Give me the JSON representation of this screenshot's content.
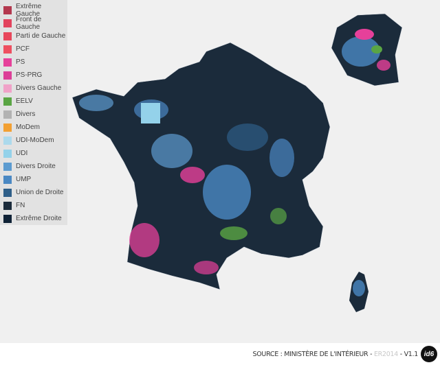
{
  "legend": [
    {
      "label": "Extrême Gauche",
      "color": "#b3384e"
    },
    {
      "label": "Front de Gauche",
      "color": "#e2435d"
    },
    {
      "label": "Parti de Gauche",
      "color": "#e8475b"
    },
    {
      "label": "PCF",
      "color": "#ee4f60"
    },
    {
      "label": "PS",
      "color": "#e6409a"
    },
    {
      "label": "PS-PRG",
      "color": "#dc3f98"
    },
    {
      "label": "Divers Gauche",
      "color": "#f0a2c8"
    },
    {
      "label": "EELV",
      "color": "#5aa544"
    },
    {
      "label": "Divers",
      "color": "#b2b2b2"
    },
    {
      "label": "MoDem",
      "color": "#f2a033"
    },
    {
      "label": "UDI-MoDem",
      "color": "#acd9ec"
    },
    {
      "label": "UDI",
      "color": "#94d2ea"
    },
    {
      "label": "Divers Droite",
      "color": "#5c9bd0"
    },
    {
      "label": "UMP",
      "color": "#4a88c3"
    },
    {
      "label": "Union de Droite",
      "color": "#2e5e88"
    },
    {
      "label": "FN",
      "color": "#1b2b3b"
    },
    {
      "label": "Extrême Droite",
      "color": "#0f2236"
    }
  ],
  "footer": {
    "source": "SOURCE : MINISTÈRE DE L'INTÉRIEUR",
    "separator": "-",
    "edition": "ER2014",
    "version": "V1.1",
    "logo": "id6"
  }
}
